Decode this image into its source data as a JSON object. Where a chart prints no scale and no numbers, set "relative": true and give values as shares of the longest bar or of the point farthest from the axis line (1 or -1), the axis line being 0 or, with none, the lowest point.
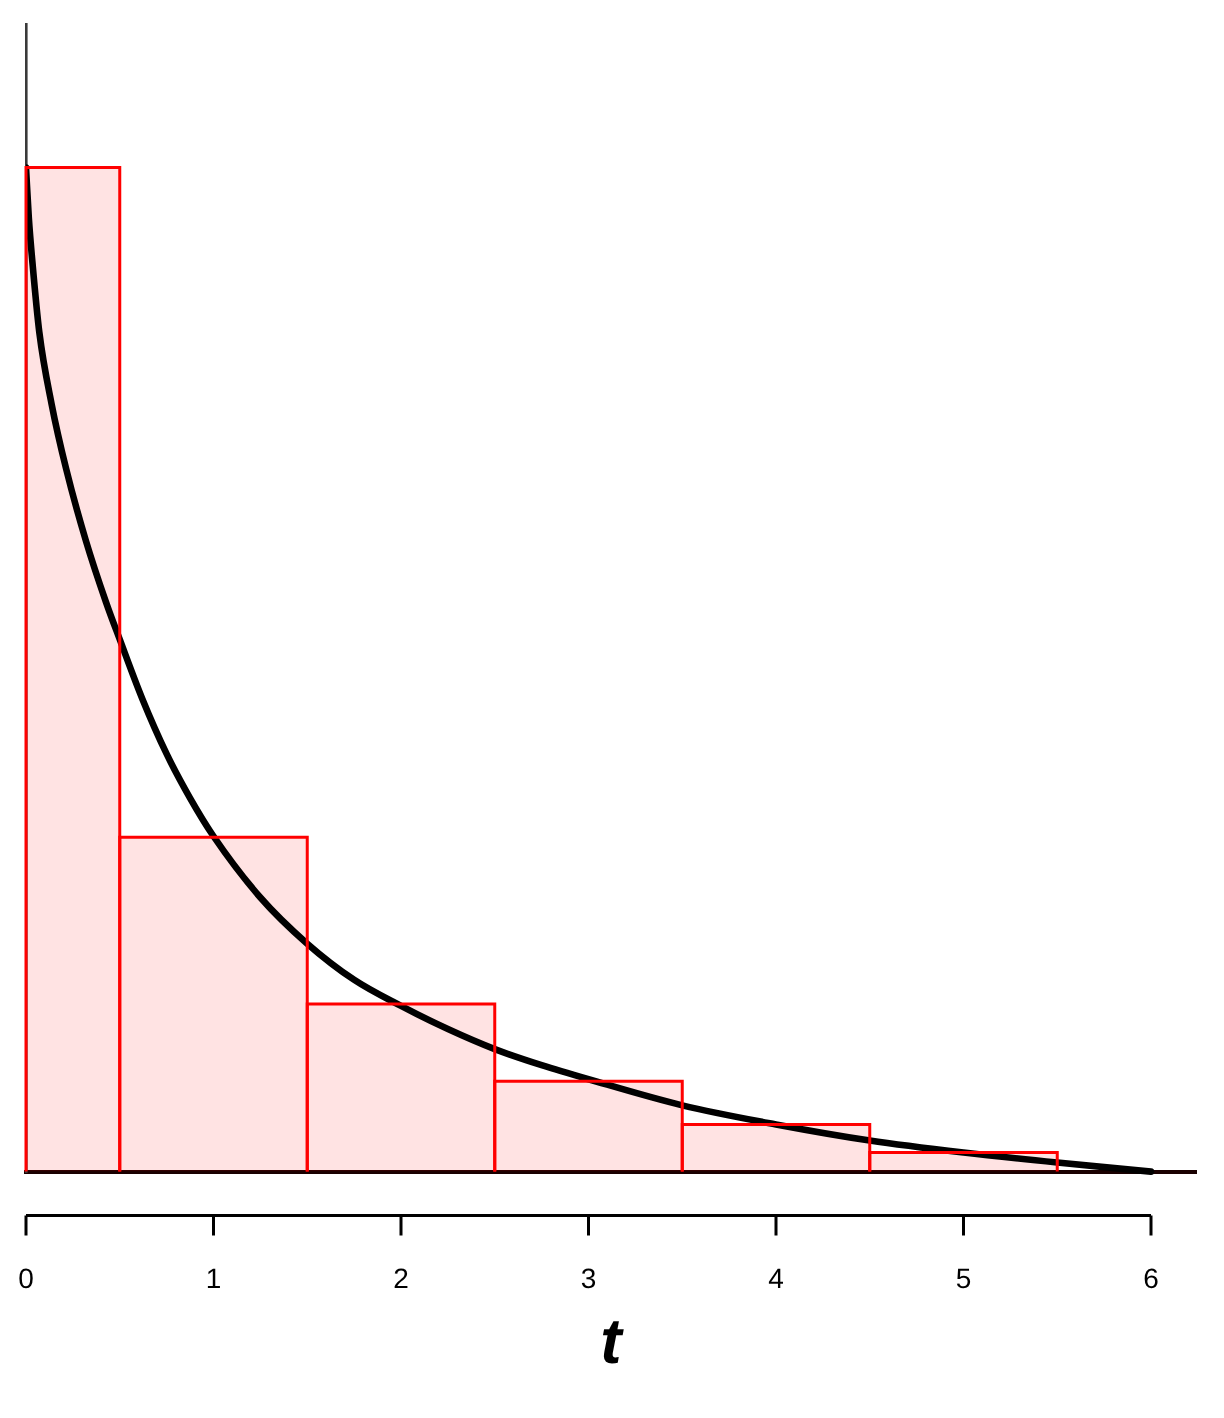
{
  "chart_data": {
    "type": "histogram",
    "xlabel": "t",
    "relative": true,
    "bins": [
      0,
      0.5,
      1.5,
      2.5,
      3.5,
      4.5,
      5.5
    ],
    "xlim": [
      0,
      6.24
    ],
    "xticks": [
      0,
      1,
      2,
      3,
      4,
      5,
      6
    ],
    "series": [
      {
        "color": "#ff0000",
        "values": [
          1,
          0.333,
          0.167,
          0.09,
          0.047,
          0.019
        ]
      },
      {
        "type": "line",
        "color": "#000000",
        "marker": "none",
        "x": [
          0,
          0.015,
          0.036,
          0.071,
          0.136,
          0.214,
          0.32,
          0.427,
          0.5,
          0.62,
          0.75,
          0.875,
          1.0,
          1.25,
          1.5,
          1.75,
          2.0,
          2.25,
          2.5,
          2.75,
          3.0,
          3.5,
          4.0,
          4.5,
          5.0,
          5.5,
          6.0
        ],
        "values": [
          1,
          0.95,
          0.902,
          0.836,
          0.765,
          0.7,
          0.628,
          0.567,
          0.53,
          0.471,
          0.416,
          0.372,
          0.334,
          0.273,
          0.227,
          0.191,
          0.165,
          0.142,
          0.122,
          0.106,
          0.092,
          0.066,
          0.047,
          0.031,
          0.019,
          0.009,
          0
        ]
      }
    ]
  }
}
